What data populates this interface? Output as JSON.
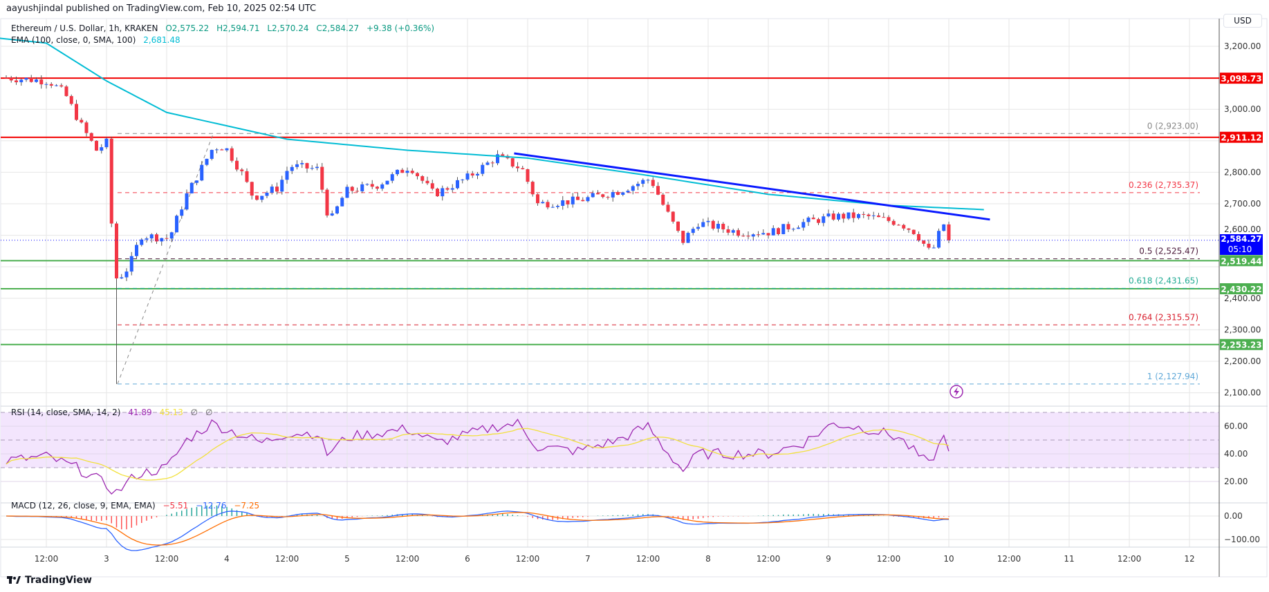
{
  "header": {
    "published": "aayushjindal published on TradingView.com, Feb 10, 2025 02:54 UTC"
  },
  "legend": {
    "symbol": "Ethereum / U.S. Dollar, 1h, KRAKEN",
    "open": "O2,575.22",
    "high": "H2,594.71",
    "low": "L2,570.24",
    "close": "C2,584.27",
    "change": "+9.38 (+0.36%)",
    "ema_label": "EMA (100, close, 0, SMA, 100)",
    "ema_value": "2,681.48"
  },
  "rsi_legend": {
    "label": "RSI (14, close, SMA, 14, 2)",
    "rsi": "41.89",
    "sma": "45.13",
    "n1": "∅",
    "n2": "∅"
  },
  "macd_legend": {
    "label": "MACD (12, 26, close, 9, EMA, EMA)",
    "hist": "−5.51",
    "macd": "−12.76",
    "signal": "−7.25"
  },
  "price_axis": {
    "currency": "USD",
    "ticks": [
      "3,200.00",
      "3,000.00",
      "2,800.00",
      "2,700.00",
      "2,600.00",
      "2,400.00",
      "2,300.00",
      "2,200.00",
      "2,100.00"
    ],
    "tick_values": [
      3200,
      3000,
      2800,
      2700,
      2600,
      2400,
      2300,
      2200,
      2100
    ],
    "rsi_ticks": [
      "60.00",
      "40.00",
      "20.00"
    ],
    "rsi_tick_values": [
      60,
      40,
      20
    ],
    "macd_ticks": [
      "0.00",
      "−100.00"
    ],
    "macd_tick_values": [
      0,
      -100
    ]
  },
  "time_axis": {
    "labels": [
      "12:00",
      "3",
      "12:00",
      "4",
      "12:00",
      "5",
      "12:00",
      "6",
      "12:00",
      "7",
      "12:00",
      "8",
      "12:00",
      "9",
      "12:00",
      "10",
      "12:00",
      "11",
      "12:00",
      "12"
    ],
    "hours": [
      12,
      24,
      36,
      48,
      60,
      72,
      84,
      96,
      108,
      120,
      132,
      144,
      156,
      168,
      180,
      192,
      204,
      216,
      228,
      240
    ]
  },
  "colors": {
    "up": "#2962ff",
    "down": "#f23645",
    "ema": "#00bcd4",
    "trend": "#0a1aff",
    "resistance": "#f20000",
    "support": "#4caf50",
    "rsi": "#9c27b0",
    "rsi_sma": "#f2e13c",
    "macd": "#2962ff",
    "signal": "#ff6d00"
  },
  "chart_data": {
    "type": "candlestick",
    "title": "Ethereum / U.S. Dollar, 1h, KRAKEN",
    "ylim": [
      2050,
      3260
    ],
    "x_unit": "hours since Feb 2 00:00 UTC",
    "close_waypoints": [
      [
        4,
        3100
      ],
      [
        12.5,
        3090
      ],
      [
        15.7,
        3050
      ],
      [
        18.9,
        2950
      ],
      [
        22,
        2870
      ],
      [
        24.5,
        2900
      ],
      [
        25.3,
        2480
      ],
      [
        26.2,
        2460
      ],
      [
        28.5,
        2500
      ],
      [
        30.9,
        2600
      ],
      [
        36.5,
        2590
      ],
      [
        39.7,
        2720
      ],
      [
        45.3,
        2880
      ],
      [
        47.7,
        2880
      ],
      [
        50.9,
        2800
      ],
      [
        53.3,
        2720
      ],
      [
        58.1,
        2750
      ],
      [
        60.5,
        2820
      ],
      [
        66.1,
        2810
      ],
      [
        68.5,
        2640
      ],
      [
        71.7,
        2740
      ],
      [
        78.1,
        2760
      ],
      [
        84.5,
        2820
      ],
      [
        89.3,
        2730
      ],
      [
        95.7,
        2780
      ],
      [
        102,
        2850
      ],
      [
        106.9,
        2810
      ],
      [
        110,
        2700
      ],
      [
        118,
        2710
      ],
      [
        126,
        2740
      ],
      [
        132.5,
        2780
      ],
      [
        134.9,
        2700
      ],
      [
        138.9,
        2580
      ],
      [
        142,
        2640
      ],
      [
        150,
        2610
      ],
      [
        156.5,
        2610
      ],
      [
        162.9,
        2640
      ],
      [
        169.3,
        2660
      ],
      [
        175.7,
        2660
      ],
      [
        182,
        2640
      ],
      [
        185.3,
        2610
      ],
      [
        188.5,
        2540
      ],
      [
        190.9,
        2640
      ],
      [
        192,
        2584.27
      ]
    ],
    "low_wick": {
      "hour": 26,
      "price": 2127.94
    },
    "ema_waypoints": [
      [
        0,
        3230
      ],
      [
        12,
        3210
      ],
      [
        24,
        3090
      ],
      [
        36,
        2990
      ],
      [
        60,
        2905
      ],
      [
        84,
        2870
      ],
      [
        108,
        2845
      ],
      [
        132,
        2790
      ],
      [
        156,
        2730
      ],
      [
        180,
        2695
      ],
      [
        199,
        2681.48
      ]
    ],
    "last_price": {
      "value": "2,584.27",
      "countdown": "05:10"
    },
    "horizontal_levels": [
      {
        "price": 3098.73,
        "label": "3,098.73",
        "kind": "resistance"
      },
      {
        "price": 2911.12,
        "label": "2,911.12",
        "kind": "resistance"
      },
      {
        "price": 2519.44,
        "label": "2,519.44",
        "kind": "support"
      },
      {
        "price": 2430.22,
        "label": "2,430.22",
        "kind": "support"
      },
      {
        "price": 2253.23,
        "label": "2,253.23",
        "kind": "support"
      }
    ],
    "trendline": {
      "from": [
        105.3,
        2860
      ],
      "to": [
        200.2,
        2650
      ]
    },
    "fibonacci": {
      "from": [
        26.2,
        2127.94
      ],
      "to": [
        45.3,
        2923
      ],
      "levels": [
        {
          "ratio": "0",
          "price": 2923,
          "label": "0 (2,923.00)",
          "color": "#888888"
        },
        {
          "ratio": "0.236",
          "price": 2735.37,
          "label": "0.236 (2,735.37)",
          "color": "#f23645"
        },
        {
          "ratio": "0.5",
          "price": 2525.47,
          "label": "0.5 (2,525.47)",
          "color": "#4a1a3a"
        },
        {
          "ratio": "0.618",
          "price": 2431.65,
          "label": "0.618 (2,431.65)",
          "color": "#22ab94"
        },
        {
          "ratio": "0.764",
          "price": 2315.57,
          "label": "0.764 (2,315.57)",
          "color": "#d81e2c"
        },
        {
          "ratio": "1",
          "price": 2127.94,
          "label": "1 (2,127.94)",
          "color": "#5fa8d8"
        }
      ]
    },
    "rsi_waypoints": [
      [
        4,
        35
      ],
      [
        12,
        38
      ],
      [
        18,
        30
      ],
      [
        22,
        22
      ],
      [
        26,
        12
      ],
      [
        30,
        25
      ],
      [
        36,
        30
      ],
      [
        40,
        50
      ],
      [
        45,
        62
      ],
      [
        50,
        55
      ],
      [
        55,
        48
      ],
      [
        60,
        55
      ],
      [
        66,
        55
      ],
      [
        68,
        40
      ],
      [
        72,
        52
      ],
      [
        84,
        58
      ],
      [
        90,
        48
      ],
      [
        102,
        60
      ],
      [
        106,
        62
      ],
      [
        110,
        45
      ],
      [
        118,
        42
      ],
      [
        126,
        50
      ],
      [
        132,
        60
      ],
      [
        135,
        45
      ],
      [
        139,
        28
      ],
      [
        142,
        40
      ],
      [
        156,
        40
      ],
      [
        163,
        48
      ],
      [
        169,
        62
      ],
      [
        176,
        58
      ],
      [
        182,
        52
      ],
      [
        185,
        42
      ],
      [
        188,
        32
      ],
      [
        191,
        52
      ],
      [
        192,
        41.89
      ]
    ],
    "rsi_bands": [
      70,
      50,
      30
    ]
  },
  "footer": {
    "brand": "TradingView"
  }
}
